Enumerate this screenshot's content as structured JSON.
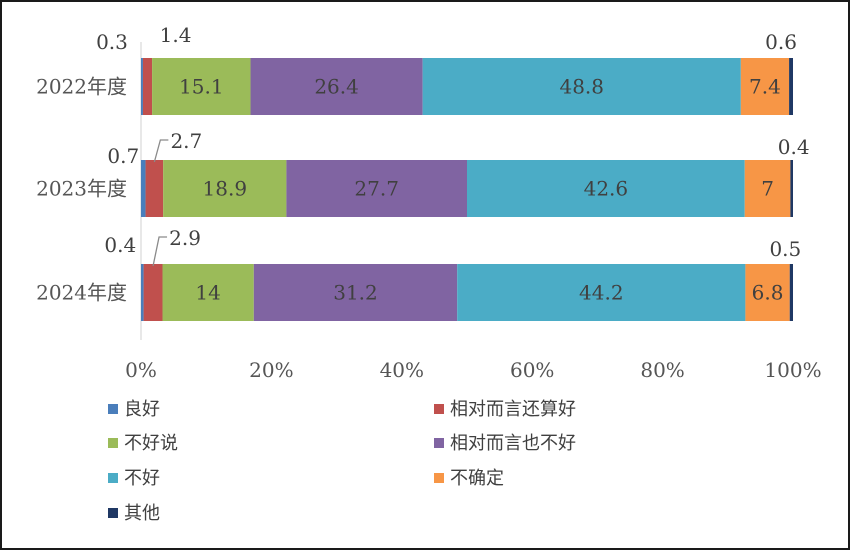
{
  "chart_data": {
    "type": "bar",
    "orientation": "horizontal",
    "stacked": "percent",
    "categories": [
      "2022年度",
      "2023年度",
      "2024年度"
    ],
    "series": [
      {
        "name": "良好",
        "color": "#4a7ebb",
        "values": [
          0.3,
          0.7,
          0.4
        ]
      },
      {
        "name": "相对而言还算好",
        "color": "#c0504d",
        "values": [
          1.4,
          2.7,
          2.9
        ]
      },
      {
        "name": "不好说",
        "color": "#9bbb59",
        "values": [
          15.1,
          18.9,
          14
        ]
      },
      {
        "name": "相对而言也不好",
        "color": "#8064a2",
        "values": [
          26.4,
          27.7,
          31.2
        ]
      },
      {
        "name": "不好",
        "color": "#4bacc6",
        "values": [
          48.8,
          42.6,
          44.2
        ]
      },
      {
        "name": "不确定",
        "color": "#f79646",
        "values": [
          7.4,
          7,
          6.8
        ]
      },
      {
        "name": "其他",
        "color": "#1f3864",
        "values": [
          0.6,
          0.4,
          0.5
        ]
      }
    ],
    "xlim": [
      0,
      100
    ],
    "x_ticks": [
      "0%",
      "20%",
      "40%",
      "60%",
      "80%",
      "100%"
    ],
    "grid": false,
    "legend_position": "bottom"
  }
}
